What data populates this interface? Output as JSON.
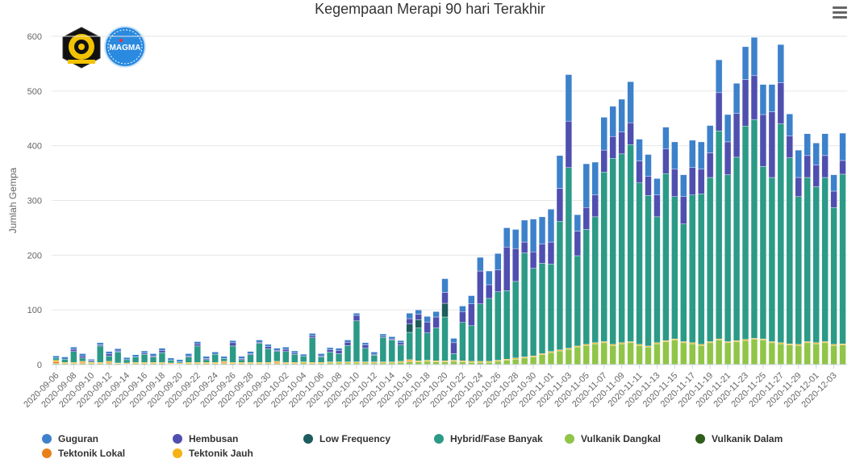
{
  "chart_data": {
    "type": "bar",
    "stacked": true,
    "title": "Kegempaan Merapi 90 hari Terakhir",
    "ylabel": "Jumlah Gempa",
    "ylim": [
      0,
      600
    ],
    "yticks": [
      0,
      100,
      200,
      300,
      400,
      500,
      600
    ],
    "grid": true,
    "legend_position": "bottom",
    "categories": [
      "2020-09-06",
      "2020-09-07",
      "2020-09-08",
      "2020-09-09",
      "2020-09-10",
      "2020-09-11",
      "2020-09-12",
      "2020-09-13",
      "2020-09-14",
      "2020-09-15",
      "2020-09-16",
      "2020-09-17",
      "2020-09-18",
      "2020-09-19",
      "2020-09-20",
      "2020-09-21",
      "2020-09-22",
      "2020-09-23",
      "2020-09-24",
      "2020-09-25",
      "2020-09-26",
      "2020-09-27",
      "2020-09-28",
      "2020-09-29",
      "2020-09-30",
      "2020-10-01",
      "2020-10-02",
      "2020-10-03",
      "2020-10-04",
      "2020-10-05",
      "2020-10-06",
      "2020-10-07",
      "2020-10-08",
      "2020-10-09",
      "2020-10-10",
      "2020-10-11",
      "2020-10-12",
      "2020-10-13",
      "2020-10-14",
      "2020-10-15",
      "2020-10-16",
      "2020-10-17",
      "2020-10-18",
      "2020-10-19",
      "2020-10-20",
      "2020-10-21",
      "2020-10-22",
      "2020-10-23",
      "2020-10-24",
      "2020-10-25",
      "2020-10-26",
      "2020-10-27",
      "2020-10-28",
      "2020-10-29",
      "2020-10-30",
      "2020-10-31",
      "2020-11-01",
      "2020-11-02",
      "2020-11-03",
      "2020-11-04",
      "2020-11-05",
      "2020-11-06",
      "2020-11-07",
      "2020-11-08",
      "2020-11-09",
      "2020-11-10",
      "2020-11-11",
      "2020-11-12",
      "2020-11-13",
      "2020-11-14",
      "2020-11-15",
      "2020-11-16",
      "2020-11-17",
      "2020-11-18",
      "2020-11-19",
      "2020-11-20",
      "2020-11-21",
      "2020-11-22",
      "2020-11-23",
      "2020-11-24",
      "2020-11-25",
      "2020-11-26",
      "2020-11-27",
      "2020-11-28",
      "2020-11-29",
      "2020-11-30",
      "2020-12-01",
      "2020-12-02",
      "2020-12-03",
      "2020-12-04"
    ],
    "tick_labels": [
      "2020-09-06",
      "2020-09-08",
      "2020-09-10",
      "2020-09-12",
      "2020-09-14",
      "2020-09-16",
      "2020-09-18",
      "2020-09-20",
      "2020-09-22",
      "2020-09-24",
      "2020-09-26",
      "2020-09-28",
      "2020-09-30",
      "2020-10-02",
      "2020-10-04",
      "2020-10-06",
      "2020-10-08",
      "2020-10-10",
      "2020-10-12",
      "2020-10-14",
      "2020-10-16",
      "2020-10-18",
      "2020-10-20",
      "2020-10-22",
      "2020-10-24",
      "2020-10-26",
      "2020-10-28",
      "2020-10-30",
      "2020-11-01",
      "2020-11-03",
      "2020-11-05",
      "2020-11-07",
      "2020-11-09",
      "2020-11-11",
      "2020-11-13",
      "2020-11-15",
      "2020-11-17",
      "2020-11-19",
      "2020-11-21",
      "2020-11-23",
      "2020-11-25",
      "2020-11-27",
      "2020-11-29",
      "2020-12-01",
      "2020-12-03"
    ],
    "series": [
      {
        "name": "Vulkanik Dangkal",
        "color": "#90c547",
        "values": [
          2,
          2,
          2,
          2,
          2,
          2,
          2,
          2,
          1,
          2,
          2,
          2,
          2,
          1,
          1,
          2,
          2,
          2,
          2,
          2,
          2,
          2,
          2,
          2,
          2,
          2,
          2,
          2,
          3,
          2,
          2,
          3,
          3,
          3,
          3,
          3,
          3,
          3,
          3,
          4,
          5,
          5,
          6,
          5,
          5,
          6,
          5,
          4,
          4,
          4,
          6,
          8,
          10,
          12,
          14,
          18,
          22,
          25,
          28,
          32,
          35,
          38,
          40,
          35,
          38,
          40,
          35,
          32,
          38,
          42,
          45,
          40,
          38,
          35,
          40,
          45,
          40,
          42,
          44,
          46,
          45,
          40,
          38,
          36,
          35,
          40,
          38,
          40,
          35,
          36
        ]
      },
      {
        "name": "Tektonik Lokal",
        "color": "#e8801a",
        "values": [
          3,
          0,
          0,
          2,
          0,
          0,
          2,
          0,
          0,
          0,
          0,
          0,
          0,
          0,
          0,
          0,
          0,
          0,
          0,
          2,
          0,
          0,
          0,
          0,
          0,
          2,
          0,
          0,
          0,
          0,
          0,
          0,
          0,
          0,
          0,
          0,
          0,
          0,
          0,
          0,
          2,
          0,
          0,
          0,
          0,
          0,
          0,
          0,
          0,
          0,
          0,
          0,
          0,
          0,
          0,
          0,
          0,
          0,
          0,
          0,
          0,
          0,
          0,
          0,
          0,
          0,
          0,
          0,
          0,
          0,
          0,
          0,
          0,
          0,
          0,
          0,
          0,
          0,
          0,
          0,
          0,
          0,
          0,
          0,
          0,
          0,
          0,
          0,
          0,
          0
        ]
      },
      {
        "name": "Tektonik Jauh",
        "color": "#f4b214",
        "values": [
          3,
          2,
          2,
          2,
          2,
          2,
          2,
          1,
          2,
          2,
          2,
          2,
          2,
          2,
          2,
          2,
          2,
          2,
          2,
          2,
          2,
          2,
          2,
          2,
          2,
          2,
          2,
          2,
          2,
          2,
          2,
          2,
          2,
          2,
          2,
          2,
          2,
          2,
          2,
          2,
          2,
          2,
          2,
          2,
          2,
          2,
          2,
          2,
          2,
          2,
          2,
          2,
          2,
          2,
          2,
          2,
          2,
          2,
          2,
          2,
          2,
          2,
          2,
          2,
          2,
          2,
          2,
          2,
          2,
          2,
          2,
          2,
          2,
          2,
          2,
          2,
          2,
          2,
          2,
          2,
          2,
          2,
          2,
          2,
          2,
          2,
          2,
          2,
          2,
          2
        ]
      },
      {
        "name": "Hybrid/Fase Banyak",
        "color": "#2b9a87",
        "values": [
          4,
          6,
          20,
          6,
          2,
          30,
          10,
          20,
          6,
          10,
          15,
          10,
          18,
          5,
          2,
          10,
          30,
          5,
          15,
          5,
          30,
          5,
          14,
          35,
          25,
          18,
          20,
          15,
          10,
          45,
          10,
          18,
          15,
          30,
          75,
          25,
          12,
          45,
          40,
          30,
          50,
          60,
          50,
          60,
          80,
          12,
          70,
          65,
          105,
          115,
          125,
          125,
          140,
          190,
          160,
          165,
          160,
          235,
          330,
          165,
          210,
          230,
          310,
          340,
          345,
          360,
          295,
          275,
          230,
          305,
          260,
          215,
          270,
          275,
          300,
          380,
          305,
          335,
          390,
          400,
          315,
          300,
          400,
          340,
          270,
          300,
          285,
          300,
          250,
          310
        ]
      },
      {
        "name": "Low Frequency",
        "color": "#1d5c5f",
        "values": [
          0,
          0,
          0,
          0,
          0,
          0,
          0,
          0,
          0,
          0,
          0,
          0,
          0,
          0,
          0,
          0,
          0,
          0,
          0,
          0,
          0,
          0,
          0,
          0,
          0,
          0,
          0,
          0,
          0,
          0,
          0,
          0,
          0,
          0,
          0,
          0,
          0,
          0,
          0,
          0,
          15,
          15,
          0,
          0,
          25,
          0,
          0,
          0,
          0,
          0,
          0,
          0,
          0,
          0,
          0,
          0,
          0,
          0,
          0,
          0,
          0,
          0,
          0,
          0,
          0,
          0,
          0,
          0,
          0,
          0,
          0,
          0,
          0,
          0,
          0,
          0,
          0,
          0,
          0,
          0,
          0,
          0,
          0,
          0,
          0,
          0,
          0,
          0,
          0,
          0
        ]
      },
      {
        "name": "Hembusan",
        "color": "#4f4fb0",
        "values": [
          0,
          0,
          4,
          4,
          2,
          2,
          4,
          2,
          0,
          0,
          2,
          2,
          4,
          0,
          0,
          2,
          4,
          2,
          0,
          0,
          6,
          2,
          2,
          2,
          4,
          2,
          4,
          2,
          0,
          4,
          2,
          4,
          6,
          6,
          10,
          6,
          2,
          2,
          2,
          4,
          10,
          10,
          20,
          20,
          20,
          20,
          20,
          40,
          60,
          25,
          40,
          80,
          60,
          20,
          30,
          35,
          40,
          60,
          85,
          45,
          40,
          40,
          40,
          40,
          40,
          40,
          40,
          35,
          40,
          45,
          50,
          50,
          50,
          45,
          45,
          70,
          60,
          80,
          85,
          80,
          95,
          120,
          75,
          40,
          35,
          40,
          40,
          40,
          30,
          25
        ]
      },
      {
        "name": "Guguran",
        "color": "#3d81cb",
        "values": [
          4,
          4,
          4,
          4,
          2,
          4,
          4,
          4,
          4,
          4,
          4,
          4,
          4,
          4,
          4,
          4,
          4,
          4,
          4,
          4,
          4,
          4,
          4,
          4,
          4,
          4,
          4,
          4,
          4,
          4,
          4,
          4,
          4,
          4,
          4,
          4,
          4,
          4,
          4,
          4,
          10,
          8,
          10,
          10,
          25,
          8,
          10,
          15,
          25,
          25,
          30,
          35,
          35,
          40,
          60,
          50,
          60,
          60,
          85,
          30,
          80,
          60,
          60,
          55,
          60,
          75,
          40,
          40,
          30,
          40,
          50,
          40,
          50,
          50,
          50,
          60,
          50,
          55,
          60,
          70,
          55,
          50,
          70,
          40,
          50,
          40,
          40,
          40,
          30,
          50
        ]
      },
      {
        "name": "Vulkanik Dalam",
        "color": "#2f5e1a",
        "values": [
          0,
          0,
          0,
          0,
          0,
          0,
          0,
          0,
          0,
          0,
          0,
          0,
          0,
          0,
          0,
          0,
          0,
          0,
          0,
          0,
          0,
          0,
          0,
          0,
          0,
          0,
          0,
          0,
          0,
          0,
          0,
          0,
          0,
          0,
          0,
          0,
          0,
          0,
          0,
          0,
          0,
          0,
          0,
          0,
          0,
          0,
          0,
          0,
          0,
          0,
          0,
          0,
          0,
          0,
          0,
          0,
          0,
          0,
          0,
          0,
          0,
          0,
          0,
          0,
          0,
          0,
          0,
          0,
          0,
          0,
          0,
          0,
          0,
          0,
          0,
          0,
          0,
          0,
          0,
          0,
          0,
          0,
          0,
          0,
          0,
          0,
          0,
          0,
          0,
          0
        ]
      }
    ],
    "legend": [
      {
        "label": "Guguran",
        "color": "#3d81cb"
      },
      {
        "label": "Hembusan",
        "color": "#4f4fb0"
      },
      {
        "label": "Low Frequency",
        "color": "#1d5c5f"
      },
      {
        "label": "Hybrid/Fase Banyak",
        "color": "#2b9a87"
      },
      {
        "label": "Vulkanik Dangkal",
        "color": "#90c547"
      },
      {
        "label": "Vulkanik Dalam",
        "color": "#2f5e1a"
      },
      {
        "label": "Tektonik Lokal",
        "color": "#e8801a"
      },
      {
        "label": "Tektonik Jauh",
        "color": "#f4b214"
      }
    ]
  },
  "logos": {
    "left_icon": "esdm-logo-icon",
    "right_icon": "magma-logo-icon",
    "right_text": "MAGMA"
  },
  "menu_icon": "hamburger-menu-icon"
}
